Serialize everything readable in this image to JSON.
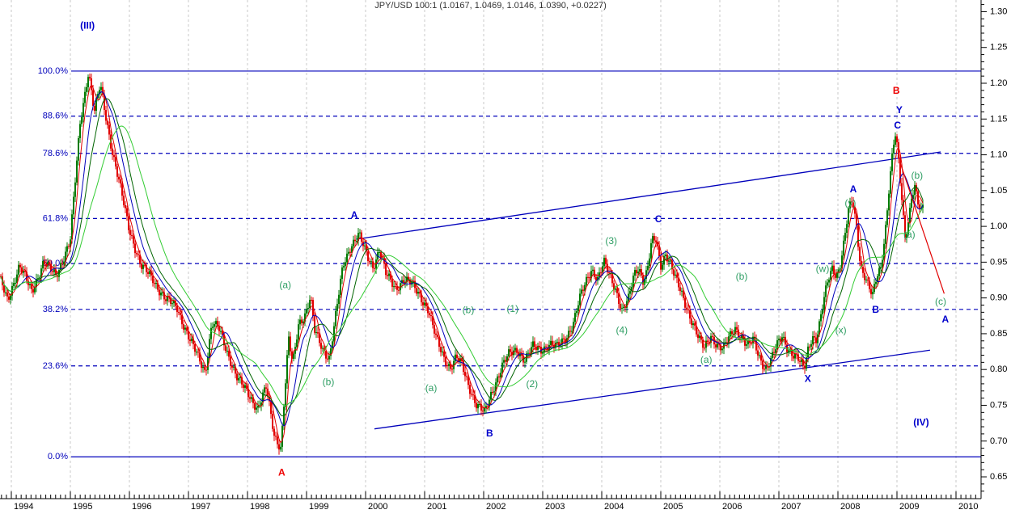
{
  "header": {
    "title": "JPY/USD 100:1 (1.0167, 1.0469, 1.0146, 1.0390, +0.0227)"
  },
  "colors": {
    "up": "#007a00",
    "down": "#e10000",
    "ma_fast": "#e10000",
    "ma_mid": "#0000bb",
    "ma_slow": "#006400",
    "ma_slowest": "#33cc33",
    "fib": "#0000bb",
    "grid": "#c9c9c9",
    "axis": "#000000",
    "label_blue": "#0000cc",
    "label_red": "#ee0000",
    "label_green": "#2f9e64",
    "trend": "#0000bb",
    "projection": "#e10000"
  },
  "chart_data": {
    "type": "candlestick",
    "title": "JPY/USD 100:1 (1.0167, 1.0469, 1.0146, 1.0390, +0.0227)",
    "instrument": "JPY/USD 100:1",
    "last_bar": {
      "open": 1.0167,
      "high": 1.0469,
      "low": 1.0146,
      "close": 1.039,
      "change": "+0.0227"
    },
    "x_axis": {
      "years": [
        1994,
        1995,
        1996,
        1997,
        1998,
        1999,
        2000,
        2001,
        2002,
        2003,
        2004,
        2005,
        2006,
        2007,
        2008,
        2009,
        2010
      ]
    },
    "y_axis": {
      "min": 0.65,
      "max": 1.3,
      "major_step": 0.05,
      "minor_step": 0.01
    },
    "fib_levels": [
      {
        "label": "100.0%",
        "value": 1.217,
        "style": "solid"
      },
      {
        "label": "88.6%",
        "value": 1.154,
        "style": "dashed"
      },
      {
        "label": "78.6%",
        "value": 1.102,
        "style": "dashed"
      },
      {
        "label": "61.8%",
        "value": 1.011,
        "style": "dashed"
      },
      {
        "label": "50.0%",
        "value": 0.948,
        "style": "dashed"
      },
      {
        "label": "38.2%",
        "value": 0.884,
        "style": "dashed"
      },
      {
        "label": "23.6%",
        "value": 0.805,
        "style": "dashed"
      },
      {
        "label": "0.0%",
        "value": 0.678,
        "style": "solid"
      }
    ],
    "trendlines": [
      {
        "name": "upper-channel",
        "from": [
          1999.84,
          0.982
        ],
        "to": [
          2009.74,
          1.104
        ],
        "color_key": "trend"
      },
      {
        "name": "lower-channel",
        "from": [
          2000.15,
          0.717
        ],
        "to": [
          2009.56,
          0.827
        ],
        "color_key": "trend"
      },
      {
        "name": "projection",
        "from": [
          2009.05,
          1.09
        ],
        "to": [
          2009.8,
          0.906
        ],
        "color_key": "projection"
      }
    ],
    "moving_averages": [
      {
        "name": "ma-fast",
        "window": 5,
        "color_key": "ma_fast"
      },
      {
        "name": "ma-mid",
        "window": 11,
        "color_key": "ma_mid"
      },
      {
        "name": "ma-slow",
        "window": 17,
        "color_key": "ma_slow"
      },
      {
        "name": "ma-slowest",
        "window": 30,
        "color_key": "ma_slowest"
      }
    ],
    "wave_labels": [
      {
        "text": "(III)",
        "t": 1995.29,
        "p": 1.281,
        "color": "blue",
        "bold": true
      },
      {
        "text": "A",
        "t": 1999.81,
        "p": 1.016,
        "color": "blue",
        "bold": true
      },
      {
        "text": "B",
        "t": 2002.1,
        "p": 0.711,
        "color": "blue",
        "bold": true
      },
      {
        "text": "C",
        "t": 2004.96,
        "p": 1.01,
        "color": "blue",
        "bold": true
      },
      {
        "text": "X",
        "t": 2007.49,
        "p": 0.787,
        "color": "blue",
        "bold": true
      },
      {
        "text": "A",
        "t": 2008.26,
        "p": 1.052,
        "color": "blue",
        "bold": true
      },
      {
        "text": "B",
        "t": 2008.64,
        "p": 0.884,
        "color": "blue",
        "bold": true
      },
      {
        "text": "Y",
        "t": 2009.04,
        "p": 1.163,
        "color": "blue",
        "bold": true
      },
      {
        "text": "C",
        "t": 2009.01,
        "p": 1.141,
        "color": "blue",
        "bold": true
      },
      {
        "text": "(IV)",
        "t": 2009.41,
        "p": 0.726,
        "color": "blue",
        "bold": true
      },
      {
        "text": "A",
        "t": 2009.82,
        "p": 0.87,
        "color": "blue",
        "bold": true
      },
      {
        "text": "B",
        "t": 2008.99,
        "p": 1.19,
        "color": "red",
        "bold": true
      },
      {
        "text": "A",
        "t": 1998.58,
        "p": 0.656,
        "color": "red",
        "bold": true
      },
      {
        "text": "(a)",
        "t": 1998.64,
        "p": 0.918,
        "color": "green",
        "bold": false
      },
      {
        "text": "(b)",
        "t": 1999.37,
        "p": 0.783,
        "color": "green",
        "bold": false
      },
      {
        "text": "(a)",
        "t": 2001.11,
        "p": 0.774,
        "color": "green",
        "bold": false
      },
      {
        "text": "(b)",
        "t": 2001.74,
        "p": 0.883,
        "color": "green",
        "bold": false
      },
      {
        "text": "(1)",
        "t": 2002.49,
        "p": 0.885,
        "color": "green",
        "bold": false
      },
      {
        "text": "(2)",
        "t": 2002.82,
        "p": 0.78,
        "color": "green",
        "bold": false
      },
      {
        "text": "(3)",
        "t": 2004.16,
        "p": 0.98,
        "color": "green",
        "bold": false
      },
      {
        "text": "(4)",
        "t": 2004.34,
        "p": 0.855,
        "color": "green",
        "bold": false
      },
      {
        "text": "(a)",
        "t": 2005.77,
        "p": 0.814,
        "color": "green",
        "bold": false
      },
      {
        "text": "(b)",
        "t": 2006.37,
        "p": 0.93,
        "color": "green",
        "bold": false
      },
      {
        "text": "(w)",
        "t": 2007.74,
        "p": 0.941,
        "color": "green",
        "bold": false
      },
      {
        "text": "(y)",
        "t": 2008.21,
        "p": 1.033,
        "color": "green",
        "bold": false
      },
      {
        "text": "(x)",
        "t": 2008.05,
        "p": 0.855,
        "color": "green",
        "bold": false
      },
      {
        "text": "(a)",
        "t": 2009.21,
        "p": 0.989,
        "color": "green",
        "bold": false
      },
      {
        "text": "(b)",
        "t": 2009.34,
        "p": 1.071,
        "color": "green",
        "bold": false
      },
      {
        "text": "(c)",
        "t": 2009.74,
        "p": 0.895,
        "color": "green",
        "bold": false
      }
    ],
    "price_path": [
      [
        1993.81,
        0.927
      ],
      [
        1993.95,
        0.898
      ],
      [
        1994.15,
        0.944
      ],
      [
        1994.36,
        0.91
      ],
      [
        1994.56,
        0.949
      ],
      [
        1994.77,
        0.932
      ],
      [
        1995.01,
        0.978
      ],
      [
        1995.18,
        1.147
      ],
      [
        1995.32,
        1.217
      ],
      [
        1995.42,
        1.158
      ],
      [
        1995.52,
        1.198
      ],
      [
        1995.73,
        1.102
      ],
      [
        1996.0,
        1.0
      ],
      [
        1996.21,
        0.944
      ],
      [
        1996.41,
        0.927
      ],
      [
        1996.62,
        0.898
      ],
      [
        1996.82,
        0.887
      ],
      [
        1997.03,
        0.842
      ],
      [
        1997.3,
        0.797
      ],
      [
        1997.41,
        0.865
      ],
      [
        1997.53,
        0.856
      ],
      [
        1997.67,
        0.825
      ],
      [
        1997.85,
        0.786
      ],
      [
        1998.05,
        0.763
      ],
      [
        1998.19,
        0.746
      ],
      [
        1998.33,
        0.774
      ],
      [
        1998.47,
        0.707
      ],
      [
        1998.58,
        0.692
      ],
      [
        1998.63,
        0.752
      ],
      [
        1998.71,
        0.842
      ],
      [
        1998.78,
        0.806
      ],
      [
        1998.88,
        0.865
      ],
      [
        1998.99,
        0.878
      ],
      [
        1999.08,
        0.901
      ],
      [
        1999.15,
        0.853
      ],
      [
        1999.29,
        0.828
      ],
      [
        1999.4,
        0.817
      ],
      [
        1999.49,
        0.865
      ],
      [
        1999.63,
        0.944
      ],
      [
        1999.77,
        0.975
      ],
      [
        1999.9,
        0.989
      ],
      [
        2000.04,
        0.957
      ],
      [
        2000.14,
        0.944
      ],
      [
        2000.25,
        0.969
      ],
      [
        2000.36,
        0.932
      ],
      [
        2000.52,
        0.913
      ],
      [
        2000.66,
        0.927
      ],
      [
        2000.79,
        0.919
      ],
      [
        2000.93,
        0.904
      ],
      [
        2001.07,
        0.885
      ],
      [
        2001.21,
        0.842
      ],
      [
        2001.34,
        0.817
      ],
      [
        2001.45,
        0.803
      ],
      [
        2001.55,
        0.817
      ],
      [
        2001.64,
        0.806
      ],
      [
        2001.75,
        0.78
      ],
      [
        2001.89,
        0.752
      ],
      [
        2002.03,
        0.738
      ],
      [
        2002.14,
        0.765
      ],
      [
        2002.23,
        0.786
      ],
      [
        2002.33,
        0.806
      ],
      [
        2002.44,
        0.82
      ],
      [
        2002.58,
        0.828
      ],
      [
        2002.71,
        0.814
      ],
      [
        2002.85,
        0.831
      ],
      [
        2002.99,
        0.828
      ],
      [
        2003.12,
        0.836
      ],
      [
        2003.26,
        0.831
      ],
      [
        2003.4,
        0.844
      ],
      [
        2003.53,
        0.865
      ],
      [
        2003.64,
        0.898
      ],
      [
        2003.74,
        0.921
      ],
      [
        2003.84,
        0.941
      ],
      [
        2003.95,
        0.927
      ],
      [
        2004.05,
        0.949
      ],
      [
        2004.15,
        0.93
      ],
      [
        2004.25,
        0.913
      ],
      [
        2004.36,
        0.882
      ],
      [
        2004.47,
        0.898
      ],
      [
        2004.56,
        0.932
      ],
      [
        2004.64,
        0.944
      ],
      [
        2004.71,
        0.926
      ],
      [
        2004.78,
        0.937
      ],
      [
        2004.86,
        0.978
      ],
      [
        2004.93,
        0.98
      ],
      [
        2005.01,
        0.944
      ],
      [
        2005.1,
        0.964
      ],
      [
        2005.18,
        0.948
      ],
      [
        2005.26,
        0.927
      ],
      [
        2005.34,
        0.91
      ],
      [
        2005.45,
        0.887
      ],
      [
        2005.56,
        0.865
      ],
      [
        2005.66,
        0.842
      ],
      [
        2005.75,
        0.828
      ],
      [
        2005.86,
        0.848
      ],
      [
        2005.97,
        0.835
      ],
      [
        2006.07,
        0.828
      ],
      [
        2006.16,
        0.842
      ],
      [
        2006.27,
        0.859
      ],
      [
        2006.38,
        0.847
      ],
      [
        2006.48,
        0.831
      ],
      [
        2006.58,
        0.841
      ],
      [
        2006.68,
        0.819
      ],
      [
        2006.79,
        0.801
      ],
      [
        2006.89,
        0.814
      ],
      [
        2006.99,
        0.835
      ],
      [
        2007.07,
        0.848
      ],
      [
        2007.16,
        0.831
      ],
      [
        2007.26,
        0.819
      ],
      [
        2007.34,
        0.813
      ],
      [
        2007.44,
        0.801
      ],
      [
        2007.51,
        0.831
      ],
      [
        2007.58,
        0.848
      ],
      [
        2007.64,
        0.84
      ],
      [
        2007.71,
        0.865
      ],
      [
        2007.78,
        0.898
      ],
      [
        2007.85,
        0.927
      ],
      [
        2007.92,
        0.944
      ],
      [
        2007.99,
        0.932
      ],
      [
        2008.05,
        0.944
      ],
      [
        2008.12,
        0.978
      ],
      [
        2008.19,
        1.02
      ],
      [
        2008.26,
        1.038
      ],
      [
        2008.33,
        1.0
      ],
      [
        2008.4,
        0.944
      ],
      [
        2008.47,
        0.93
      ],
      [
        2008.53,
        0.915
      ],
      [
        2008.6,
        0.901
      ],
      [
        2008.67,
        0.93
      ],
      [
        2008.74,
        0.944
      ],
      [
        2008.81,
        0.989
      ],
      [
        2008.88,
        1.054
      ],
      [
        2008.95,
        1.111
      ],
      [
        2008.99,
        1.127
      ],
      [
        2009.04,
        1.091
      ],
      [
        2009.1,
        1.034
      ],
      [
        2009.15,
        0.987
      ],
      [
        2009.21,
        1.009
      ],
      [
        2009.26,
        1.043
      ],
      [
        2009.32,
        1.054
      ],
      [
        2009.37,
        1.032
      ],
      [
        2009.42,
        1.016
      ],
      [
        2009.47,
        1.034
      ]
    ]
  }
}
